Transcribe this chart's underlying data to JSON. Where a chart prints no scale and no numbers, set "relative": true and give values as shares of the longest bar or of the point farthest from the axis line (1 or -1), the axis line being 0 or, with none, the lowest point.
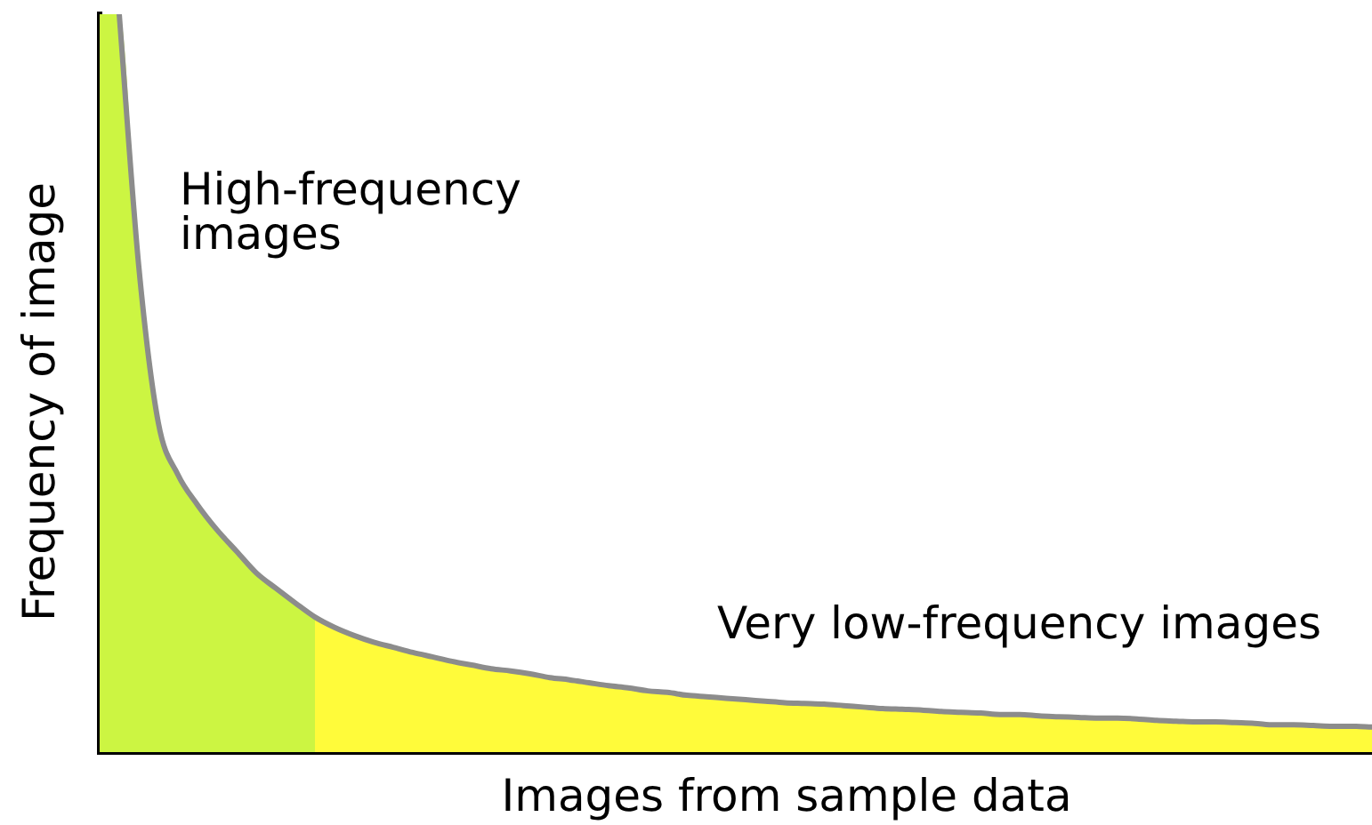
{
  "chart_data": {
    "type": "area",
    "relative": true,
    "xlabel": "Images from sample data",
    "ylabel": "Frequency of image",
    "annotations": [
      "High-frequency images",
      "Very low-frequency images"
    ],
    "tick_labels": false,
    "categories": [
      null,
      null,
      null,
      null,
      null,
      null,
      null,
      null,
      null,
      null,
      null,
      null,
      null,
      null,
      null,
      null,
      null,
      null,
      null,
      null,
      null,
      null,
      null,
      null,
      null,
      null,
      null,
      null,
      null,
      null,
      null,
      null,
      null,
      null,
      null,
      null,
      null,
      null,
      null,
      null,
      null,
      null,
      null,
      null,
      null,
      null,
      null,
      null,
      null,
      null,
      null,
      null,
      null,
      null,
      null,
      null,
      null,
      null,
      null,
      null,
      null,
      null,
      null,
      null,
      null,
      null
    ],
    "series": [
      {
        "color": "#ccf542",
        "values": [
          1,
          1,
          0.658,
          0.446,
          0.376,
          0.335,
          0.301,
          0.272,
          0.243,
          0.222,
          0.202,
          0.183,
          null,
          null,
          null,
          null,
          null,
          null,
          null,
          null,
          null,
          null,
          null,
          null,
          null,
          null,
          null,
          null,
          null,
          null,
          null,
          null,
          null,
          null,
          null,
          null,
          null,
          null,
          null,
          null,
          null,
          null,
          null,
          null,
          null,
          null,
          null,
          null,
          null,
          null,
          null,
          null,
          null,
          null,
          null,
          null,
          null,
          null,
          null,
          null,
          null,
          null,
          null,
          null,
          null,
          null
        ]
      },
      {
        "color": "#fffb3a",
        "values": [
          null,
          null,
          null,
          null,
          null,
          null,
          null,
          null,
          null,
          null,
          null,
          0.183,
          0.169,
          0.158,
          0.149,
          0.142,
          0.135,
          0.129,
          0.123,
          0.118,
          0.113,
          0.11,
          0.106,
          0.101,
          0.098,
          0.094,
          0.09,
          0.087,
          0.083,
          0.081,
          0.077,
          0.075,
          0.073,
          0.071,
          0.069,
          0.067,
          0.066,
          0.065,
          0.063,
          0.061,
          0.059,
          0.058,
          0.057,
          0.055,
          0.054,
          0.053,
          0.051,
          0.051,
          0.049,
          0.048,
          0.047,
          0.046,
          0.046,
          0.045,
          0.043,
          0.042,
          0.041,
          0.041,
          0.04,
          0.039,
          0.037,
          0.037,
          0.036,
          0.035,
          0.035,
          0.034
        ]
      },
      {
        "type": "line",
        "color": "#8c8c8c",
        "values": [
          null,
          1,
          0.658,
          0.446,
          0.376,
          0.335,
          0.301,
          0.272,
          0.243,
          0.222,
          0.202,
          0.183,
          0.169,
          0.158,
          0.149,
          0.142,
          0.135,
          0.129,
          0.123,
          0.118,
          0.113,
          0.11,
          0.106,
          0.101,
          0.098,
          0.094,
          0.09,
          0.087,
          0.083,
          0.081,
          0.077,
          0.075,
          0.073,
          0.071,
          0.069,
          0.067,
          0.066,
          0.065,
          0.063,
          0.061,
          0.059,
          0.058,
          0.057,
          0.055,
          0.054,
          0.053,
          0.051,
          0.051,
          0.049,
          0.048,
          0.047,
          0.046,
          0.046,
          0.045,
          0.043,
          0.042,
          0.041,
          0.041,
          0.04,
          0.039,
          0.037,
          0.037,
          0.036,
          0.035,
          0.035,
          0.034
        ]
      }
    ]
  }
}
